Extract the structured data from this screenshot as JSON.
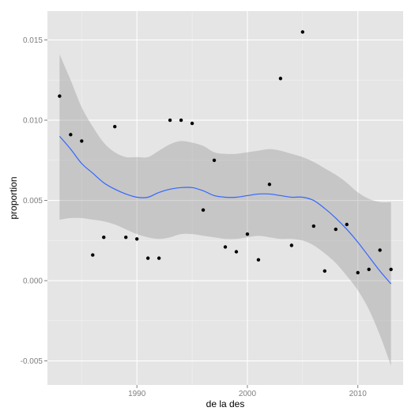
{
  "chart_data": {
    "type": "scatter",
    "title": "",
    "xlabel": "de la des",
    "ylabel": "proportion",
    "xlim": [
      1981.9,
      2014.1
    ],
    "ylim": [
      -0.0065,
      0.0168
    ],
    "x_ticks": [
      1990,
      2000,
      2010
    ],
    "x_tick_labels": [
      "1990",
      "2000",
      "2010"
    ],
    "y_ticks": [
      -0.005,
      0.0,
      0.005,
      0.01,
      0.015
    ],
    "y_tick_labels": [
      "-0.005",
      "0.000",
      "0.005",
      "0.010",
      "0.015"
    ],
    "grid": true,
    "legend": "none",
    "colors": {
      "panel": "#e5e5e5",
      "grid_major": "#ffffff",
      "grid_minor": "#f2f2f2",
      "points": "#000000",
      "smooth_line": "#3366ff",
      "confidence_band": "#999999"
    },
    "points": {
      "x": [
        1983,
        1984,
        1985,
        1986,
        1987,
        1988,
        1989,
        1990,
        1991,
        1992,
        1993,
        1994,
        1995,
        1996,
        1997,
        1998,
        1999,
        2000,
        2001,
        2002,
        2003,
        2004,
        2005,
        2006,
        2007,
        2008,
        2009,
        2010,
        2011,
        2012,
        2013
      ],
      "y": [
        0.0115,
        0.0091,
        0.0087,
        0.0016,
        0.0027,
        0.0096,
        0.0027,
        0.0026,
        0.0014,
        0.0014,
        0.01,
        0.01,
        0.0098,
        0.0044,
        0.0075,
        0.0021,
        0.0018,
        0.0029,
        0.0013,
        0.006,
        0.0126,
        0.0022,
        0.0155,
        0.0034,
        0.0006,
        0.0032,
        0.0035,
        0.0005,
        0.0007,
        0.0019,
        0.0007
      ]
    },
    "smooth": {
      "x": [
        1983,
        1984,
        1985,
        1986,
        1987,
        1988,
        1989,
        1990,
        1991,
        1992,
        1993,
        1994,
        1995,
        1996,
        1997,
        1998,
        1999,
        2000,
        2001,
        2002,
        2003,
        2004,
        2005,
        2006,
        2007,
        2008,
        2009,
        2010,
        2011,
        2012,
        2013
      ],
      "y": [
        0.009,
        0.0082,
        0.0073,
        0.0067,
        0.0061,
        0.0057,
        0.0054,
        0.0052,
        0.0052,
        0.0055,
        0.0057,
        0.0058,
        0.0058,
        0.0056,
        0.0053,
        0.0052,
        0.0052,
        0.0053,
        0.0054,
        0.0054,
        0.0053,
        0.0052,
        0.0052,
        0.005,
        0.0045,
        0.0039,
        0.0032,
        0.0024,
        0.0015,
        0.0006,
        -0.0002
      ],
      "lower": [
        0.0038,
        0.0039,
        0.0039,
        0.0038,
        0.0037,
        0.0035,
        0.0032,
        0.0029,
        0.0027,
        0.0026,
        0.0027,
        0.0029,
        0.0029,
        0.0028,
        0.0027,
        0.0026,
        0.0026,
        0.0027,
        0.0028,
        0.0027,
        0.0026,
        0.0026,
        0.0025,
        0.0022,
        0.0017,
        0.0011,
        0.0003,
        -0.0006,
        -0.0018,
        -0.0034,
        -0.0053
      ],
      "upper": [
        0.0141,
        0.0125,
        0.0108,
        0.0096,
        0.0086,
        0.008,
        0.0077,
        0.0077,
        0.0077,
        0.0081,
        0.0085,
        0.0087,
        0.0086,
        0.0084,
        0.008,
        0.0079,
        0.0079,
        0.008,
        0.0081,
        0.0082,
        0.0081,
        0.0079,
        0.0077,
        0.0074,
        0.007,
        0.0066,
        0.0061,
        0.0055,
        0.0051,
        0.0049,
        0.0049
      ]
    }
  }
}
